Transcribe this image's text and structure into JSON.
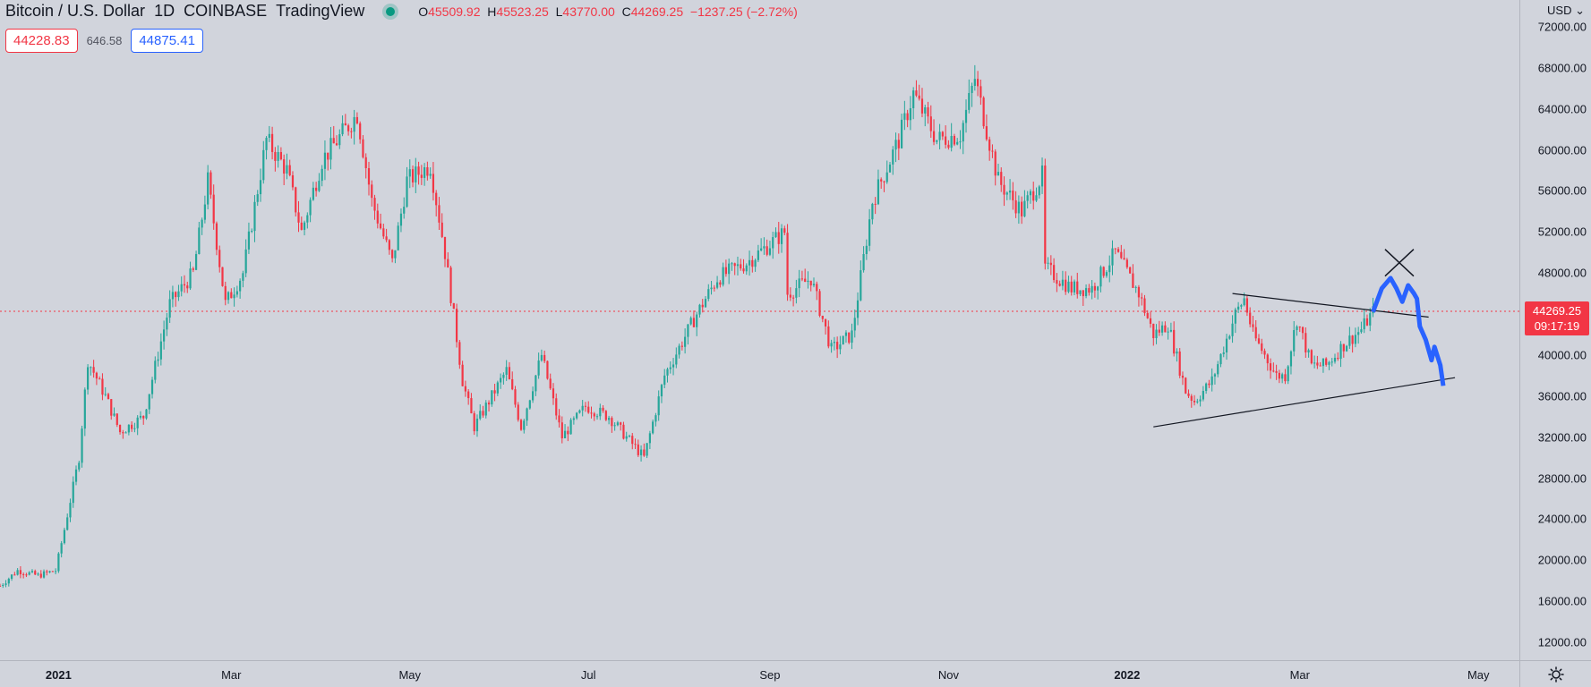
{
  "header": {
    "symbol": "Bitcoin / U.S. Dollar",
    "interval": "1D",
    "exchange": "COINBASE",
    "provider": "TradingView",
    "open_label": "O",
    "open": "45509.92",
    "high_label": "H",
    "high": "45523.25",
    "low_label": "L",
    "low": "43770.00",
    "close_label": "C",
    "close": "44269.25",
    "change": "−1237.25 (−2.72%)"
  },
  "quotes": {
    "sell": "44228.83",
    "spread": "646.58",
    "buy": "44875.41"
  },
  "price_axis": {
    "currency": "USD",
    "ticks": [
      "72000.00",
      "68000.00",
      "64000.00",
      "60000.00",
      "56000.00",
      "52000.00",
      "48000.00",
      "44000.00",
      "40000.00",
      "36000.00",
      "32000.00",
      "28000.00",
      "24000.00",
      "20000.00",
      "16000.00",
      "12000.00"
    ],
    "last_price": "44269.25",
    "countdown": "09:17:19"
  },
  "time_axis": {
    "ticks": [
      {
        "label": "2021",
        "bold": true
      },
      {
        "label": "Mar",
        "bold": false
      },
      {
        "label": "May",
        "bold": false
      },
      {
        "label": "Jul",
        "bold": false
      },
      {
        "label": "Sep",
        "bold": false
      },
      {
        "label": "Nov",
        "bold": false
      },
      {
        "label": "2022",
        "bold": true
      },
      {
        "label": "Mar",
        "bold": false
      },
      {
        "label": "May",
        "bold": false
      }
    ]
  },
  "colors": {
    "up": "#26a69a",
    "down": "#f23645",
    "drawing": "#2962ff",
    "background": "#d1d4dc"
  },
  "chart_data": {
    "type": "candlestick",
    "title": "Bitcoin / U.S. Dollar, 1D, COINBASE",
    "ylabel": "USD",
    "ylim": [
      10000,
      74000
    ],
    "x_domain": [
      "2020-12-12",
      "2022-05-15"
    ],
    "last_price": 44269.25,
    "price_path": [
      [
        "2020-12-12",
        17500
      ],
      [
        "2020-12-18",
        19000
      ],
      [
        "2020-12-25",
        18500
      ],
      [
        "2020-12-31",
        19000
      ],
      [
        "2021-01-03",
        23000
      ],
      [
        "2021-01-08",
        30000
      ],
      [
        "2021-01-11",
        39500
      ],
      [
        "2021-01-17",
        36000
      ],
      [
        "2021-01-22",
        32500
      ],
      [
        "2021-01-30",
        34000
      ],
      [
        "2021-02-08",
        45000
      ],
      [
        "2021-02-16",
        48000
      ],
      [
        "2021-02-21",
        57000
      ],
      [
        "2021-02-27",
        45000
      ],
      [
        "2021-03-05",
        48000
      ],
      [
        "2021-03-13",
        61000
      ],
      [
        "2021-03-20",
        58000
      ],
      [
        "2021-03-25",
        52000
      ],
      [
        "2021-04-01",
        59000
      ],
      [
        "2021-04-13",
        63500
      ],
      [
        "2021-04-18",
        55000
      ],
      [
        "2021-04-25",
        49000
      ],
      [
        "2021-04-30",
        57000
      ],
      [
        "2021-05-08",
        58500
      ],
      [
        "2021-05-13",
        50000
      ],
      [
        "2021-05-19",
        37500
      ],
      [
        "2021-05-23",
        33000
      ],
      [
        "2021-05-28",
        35500
      ],
      [
        "2021-06-03",
        38500
      ],
      [
        "2021-06-08",
        33000
      ],
      [
        "2021-06-15",
        40000
      ],
      [
        "2021-06-22",
        32000
      ],
      [
        "2021-06-30",
        35000
      ],
      [
        "2021-07-08",
        34000
      ],
      [
        "2021-07-20",
        30000
      ],
      [
        "2021-07-27",
        38000
      ],
      [
        "2021-08-07",
        44000
      ],
      [
        "2021-08-14",
        47500
      ],
      [
        "2021-08-24",
        49000
      ],
      [
        "2021-09-06",
        52000
      ],
      [
        "2021-09-07",
        46000
      ],
      [
        "2021-09-15",
        47500
      ],
      [
        "2021-09-22",
        40500
      ],
      [
        "2021-09-29",
        42000
      ],
      [
        "2021-10-06",
        55000
      ],
      [
        "2021-10-15",
        61000
      ],
      [
        "2021-10-20",
        65500
      ],
      [
        "2021-10-28",
        61000
      ],
      [
        "2021-11-05",
        61500
      ],
      [
        "2021-11-10",
        67000
      ],
      [
        "2021-11-18",
        57000
      ],
      [
        "2021-11-26",
        54000
      ],
      [
        "2021-12-03",
        57500
      ],
      [
        "2021-12-04",
        48500
      ],
      [
        "2021-12-13",
        46500
      ],
      [
        "2021-12-20",
        46500
      ],
      [
        "2021-12-28",
        50000
      ],
      [
        "2022-01-05",
        46000
      ],
      [
        "2022-01-10",
        42000
      ],
      [
        "2022-01-15",
        43000
      ],
      [
        "2022-01-21",
        36500
      ],
      [
        "2022-01-24",
        35500
      ],
      [
        "2022-01-30",
        37500
      ],
      [
        "2022-02-07",
        44000
      ],
      [
        "2022-02-10",
        45500
      ],
      [
        "2022-02-13",
        42000
      ],
      [
        "2022-02-21",
        38000
      ],
      [
        "2022-02-24",
        38000
      ],
      [
        "2022-02-28",
        43500
      ],
      [
        "2022-03-05",
        39000
      ],
      [
        "2022-03-10",
        39000
      ],
      [
        "2022-03-16",
        41000
      ],
      [
        "2022-03-22",
        42500
      ],
      [
        "2022-03-26",
        44200
      ]
    ],
    "drawings": {
      "upper_trendline": [
        [
          "2022-02-06",
          46000
        ],
        [
          "2022-04-14",
          43700
        ]
      ],
      "lower_trendline": [
        [
          "2022-01-10",
          33000
        ],
        [
          "2022-04-23",
          37800
        ]
      ],
      "projection_path": [
        [
          "2022-03-26",
          44200
        ],
        [
          "2022-03-29",
          46500
        ],
        [
          "2022-04-01",
          47500
        ],
        [
          "2022-04-03",
          46500
        ],
        [
          "2022-04-05",
          45200
        ],
        [
          "2022-04-07",
          46800
        ],
        [
          "2022-04-09",
          46000
        ],
        [
          "2022-04-10",
          45500
        ],
        [
          "2022-04-11",
          42800
        ],
        [
          "2022-04-13",
          41500
        ],
        [
          "2022-04-15",
          39500
        ],
        [
          "2022-04-16",
          40800
        ],
        [
          "2022-04-18",
          39000
        ],
        [
          "2022-04-19",
          37000
        ]
      ],
      "x_mark": [
        "2022-04-04",
        49000
      ]
    }
  }
}
